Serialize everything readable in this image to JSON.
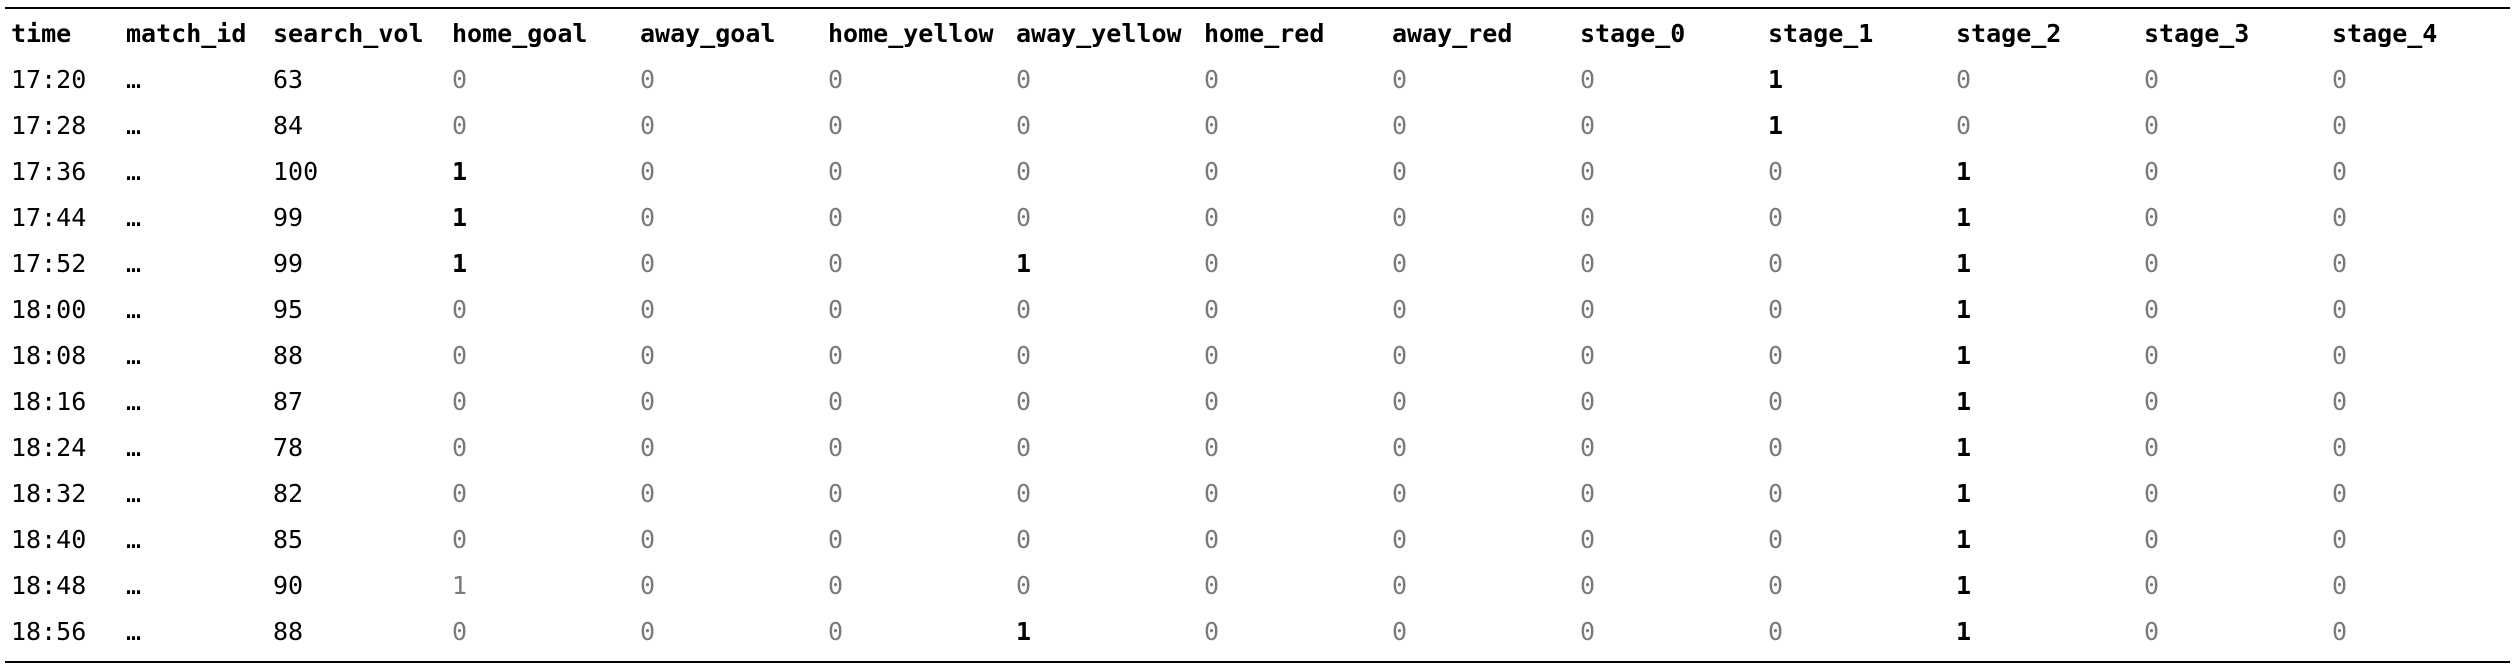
{
  "table": {
    "columns": [
      "time",
      "match_id",
      "search_vol",
      "home_goal",
      "away_goal",
      "home_yellow",
      "away_yellow",
      "home_red",
      "away_red",
      "stage_0",
      "stage_1",
      "stage_2",
      "stage_3",
      "stage_4"
    ],
    "rows": [
      [
        "17:20",
        "…",
        "63",
        "0",
        "0",
        "0",
        "0",
        "0",
        "0",
        "0",
        "1",
        "0",
        "0",
        "0"
      ],
      [
        "17:28",
        "…",
        "84",
        "0",
        "0",
        "0",
        "0",
        "0",
        "0",
        "0",
        "1",
        "0",
        "0",
        "0"
      ],
      [
        "17:36",
        "…",
        "100",
        "1",
        "0",
        "0",
        "0",
        "0",
        "0",
        "0",
        "0",
        "1",
        "0",
        "0"
      ],
      [
        "17:44",
        "…",
        "99",
        "1",
        "0",
        "0",
        "0",
        "0",
        "0",
        "0",
        "0",
        "1",
        "0",
        "0"
      ],
      [
        "17:52",
        "…",
        "99",
        "1",
        "0",
        "0",
        "1",
        "0",
        "0",
        "0",
        "0",
        "1",
        "0",
        "0"
      ],
      [
        "18:00",
        "…",
        "95",
        "0",
        "0",
        "0",
        "0",
        "0",
        "0",
        "0",
        "0",
        "1",
        "0",
        "0"
      ],
      [
        "18:08",
        "…",
        "88",
        "0",
        "0",
        "0",
        "0",
        "0",
        "0",
        "0",
        "0",
        "1",
        "0",
        "0"
      ],
      [
        "18:16",
        "…",
        "87",
        "0",
        "0",
        "0",
        "0",
        "0",
        "0",
        "0",
        "0",
        "1",
        "0",
        "0"
      ],
      [
        "18:24",
        "…",
        "78",
        "0",
        "0",
        "0",
        "0",
        "0",
        "0",
        "0",
        "0",
        "1",
        "0",
        "0"
      ],
      [
        "18:32",
        "…",
        "82",
        "0",
        "0",
        "0",
        "0",
        "0",
        "0",
        "0",
        "0",
        "1",
        "0",
        "0"
      ],
      [
        "18:40",
        "…",
        "85",
        "0",
        "0",
        "0",
        "0",
        "0",
        "0",
        "0",
        "0",
        "1",
        "0",
        "0"
      ],
      [
        "18:48",
        "…",
        "90",
        "1",
        "0",
        "0",
        "0",
        "0",
        "0",
        "0",
        "0",
        "1",
        "0",
        "0"
      ],
      [
        "18:56",
        "…",
        "88",
        "0",
        "0",
        "0",
        "1",
        "0",
        "0",
        "0",
        "0",
        "1",
        "0",
        "0"
      ]
    ],
    "faint_cells": [
      [
        11,
        3
      ]
    ],
    "colors": {
      "text": "#000000",
      "zero_text": "#7a7a7a",
      "rule": "#000000",
      "background": "#ffffff"
    }
  }
}
